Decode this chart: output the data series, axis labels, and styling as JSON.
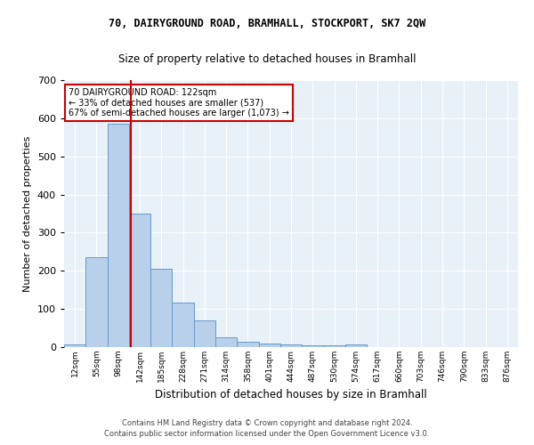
{
  "title1": "70, DAIRYGROUND ROAD, BRAMHALL, STOCKPORT, SK7 2QW",
  "title2": "Size of property relative to detached houses in Bramhall",
  "xlabel": "Distribution of detached houses by size in Bramhall",
  "ylabel": "Number of detached properties",
  "bin_labels": [
    "12sqm",
    "55sqm",
    "98sqm",
    "142sqm",
    "185sqm",
    "228sqm",
    "271sqm",
    "314sqm",
    "358sqm",
    "401sqm",
    "444sqm",
    "487sqm",
    "530sqm",
    "574sqm",
    "617sqm",
    "660sqm",
    "703sqm",
    "746sqm",
    "790sqm",
    "833sqm",
    "876sqm"
  ],
  "bar_values": [
    8,
    235,
    585,
    350,
    205,
    117,
    70,
    25,
    15,
    10,
    8,
    5,
    5,
    8,
    0,
    0,
    0,
    0,
    0,
    0,
    0
  ],
  "bar_color": "#b8d0ea",
  "bar_edge_color": "#6699cc",
  "vline_x": 2.58,
  "vline_color": "#cc0000",
  "annotation_line1": "70 DAIRYGROUND ROAD: 122sqm",
  "annotation_line2": "← 33% of detached houses are smaller (537)",
  "annotation_line3": "67% of semi-detached houses are larger (1,073) →",
  "annotation_box_color": "#ffffff",
  "annotation_box_edge_color": "#cc0000",
  "ylim": [
    0,
    700
  ],
  "yticks": [
    0,
    100,
    200,
    300,
    400,
    500,
    600,
    700
  ],
  "footer1": "Contains HM Land Registry data © Crown copyright and database right 2024.",
  "footer2": "Contains public sector information licensed under the Open Government Licence v3.0.",
  "plot_bg_color": "#e8f0f8"
}
